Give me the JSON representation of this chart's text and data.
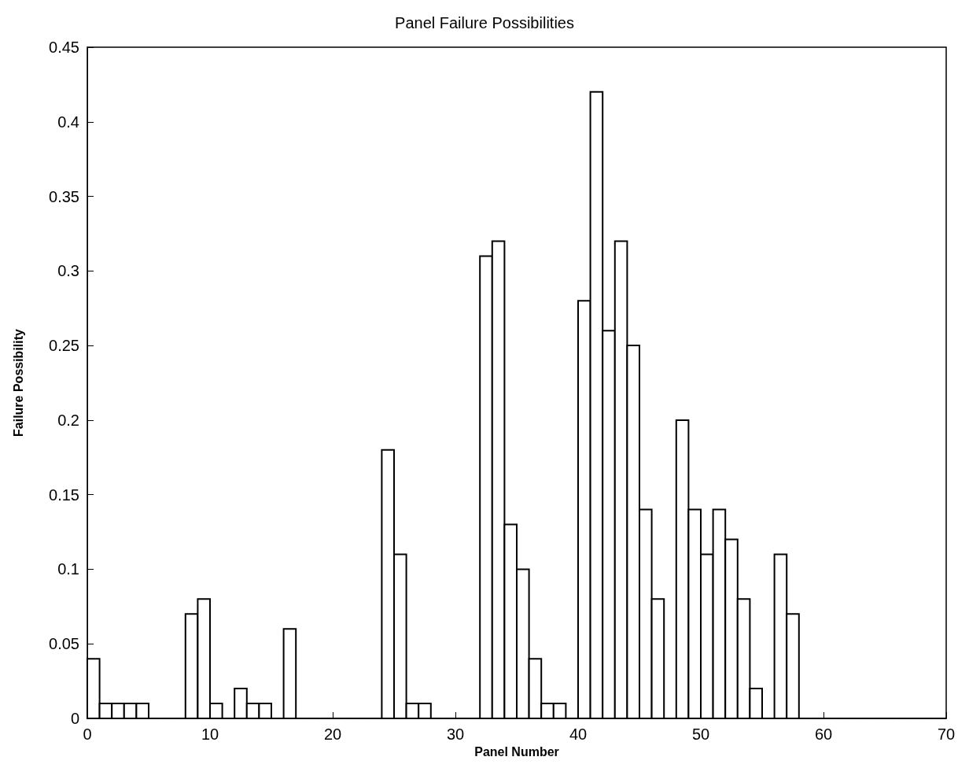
{
  "chart_data": {
    "type": "histogram",
    "title": "Panel Failure Possibilities",
    "xlabel": "Panel Number",
    "ylabel": "Failure Possibility",
    "bins": [
      0,
      1,
      2,
      3,
      4,
      5,
      6,
      7,
      8,
      9,
      10,
      11,
      12,
      13,
      14,
      15,
      16,
      17,
      18,
      19,
      20,
      21,
      22,
      23,
      24,
      25,
      26,
      27,
      28,
      29,
      30,
      31,
      32,
      33,
      34,
      35,
      36,
      37,
      38,
      39,
      40,
      41,
      42,
      43,
      44,
      45,
      46,
      47,
      48,
      49,
      50,
      51,
      52,
      53,
      54,
      55,
      56,
      57,
      58,
      59,
      60,
      61,
      62,
      63,
      64,
      65,
      66,
      67,
      68,
      69,
      70
    ],
    "values": [
      0.04,
      0.01,
      0.01,
      0.01,
      0.01,
      0,
      0,
      0,
      0.07,
      0.08,
      0.01,
      0,
      0.02,
      0.01,
      0.01,
      0,
      0.06,
      0,
      0,
      0,
      0,
      0,
      0,
      0,
      0.18,
      0.11,
      0.01,
      0.01,
      0,
      0,
      0,
      0,
      0.31,
      0.32,
      0.13,
      0.1,
      0.04,
      0.01,
      0.01,
      0,
      0.28,
      0.42,
      0.26,
      0.32,
      0.25,
      0.14,
      0.08,
      0,
      0.2,
      0.14,
      0.11,
      0.14,
      0.12,
      0.08,
      0.02,
      0,
      0.11,
      0.07,
      0,
      0,
      0,
      0,
      0,
      0,
      0,
      0,
      0,
      0,
      0,
      0
    ],
    "color": "#000000",
    "xlim": [
      0,
      70
    ],
    "xticks": [
      0,
      10,
      20,
      30,
      40,
      50,
      60,
      70
    ],
    "ylim": [
      0,
      0.45
    ],
    "yticks": [
      0,
      0.05,
      0.1,
      0.15,
      0.2,
      0.25,
      0.3,
      0.35,
      0.4,
      0.45
    ],
    "grid": false
  }
}
